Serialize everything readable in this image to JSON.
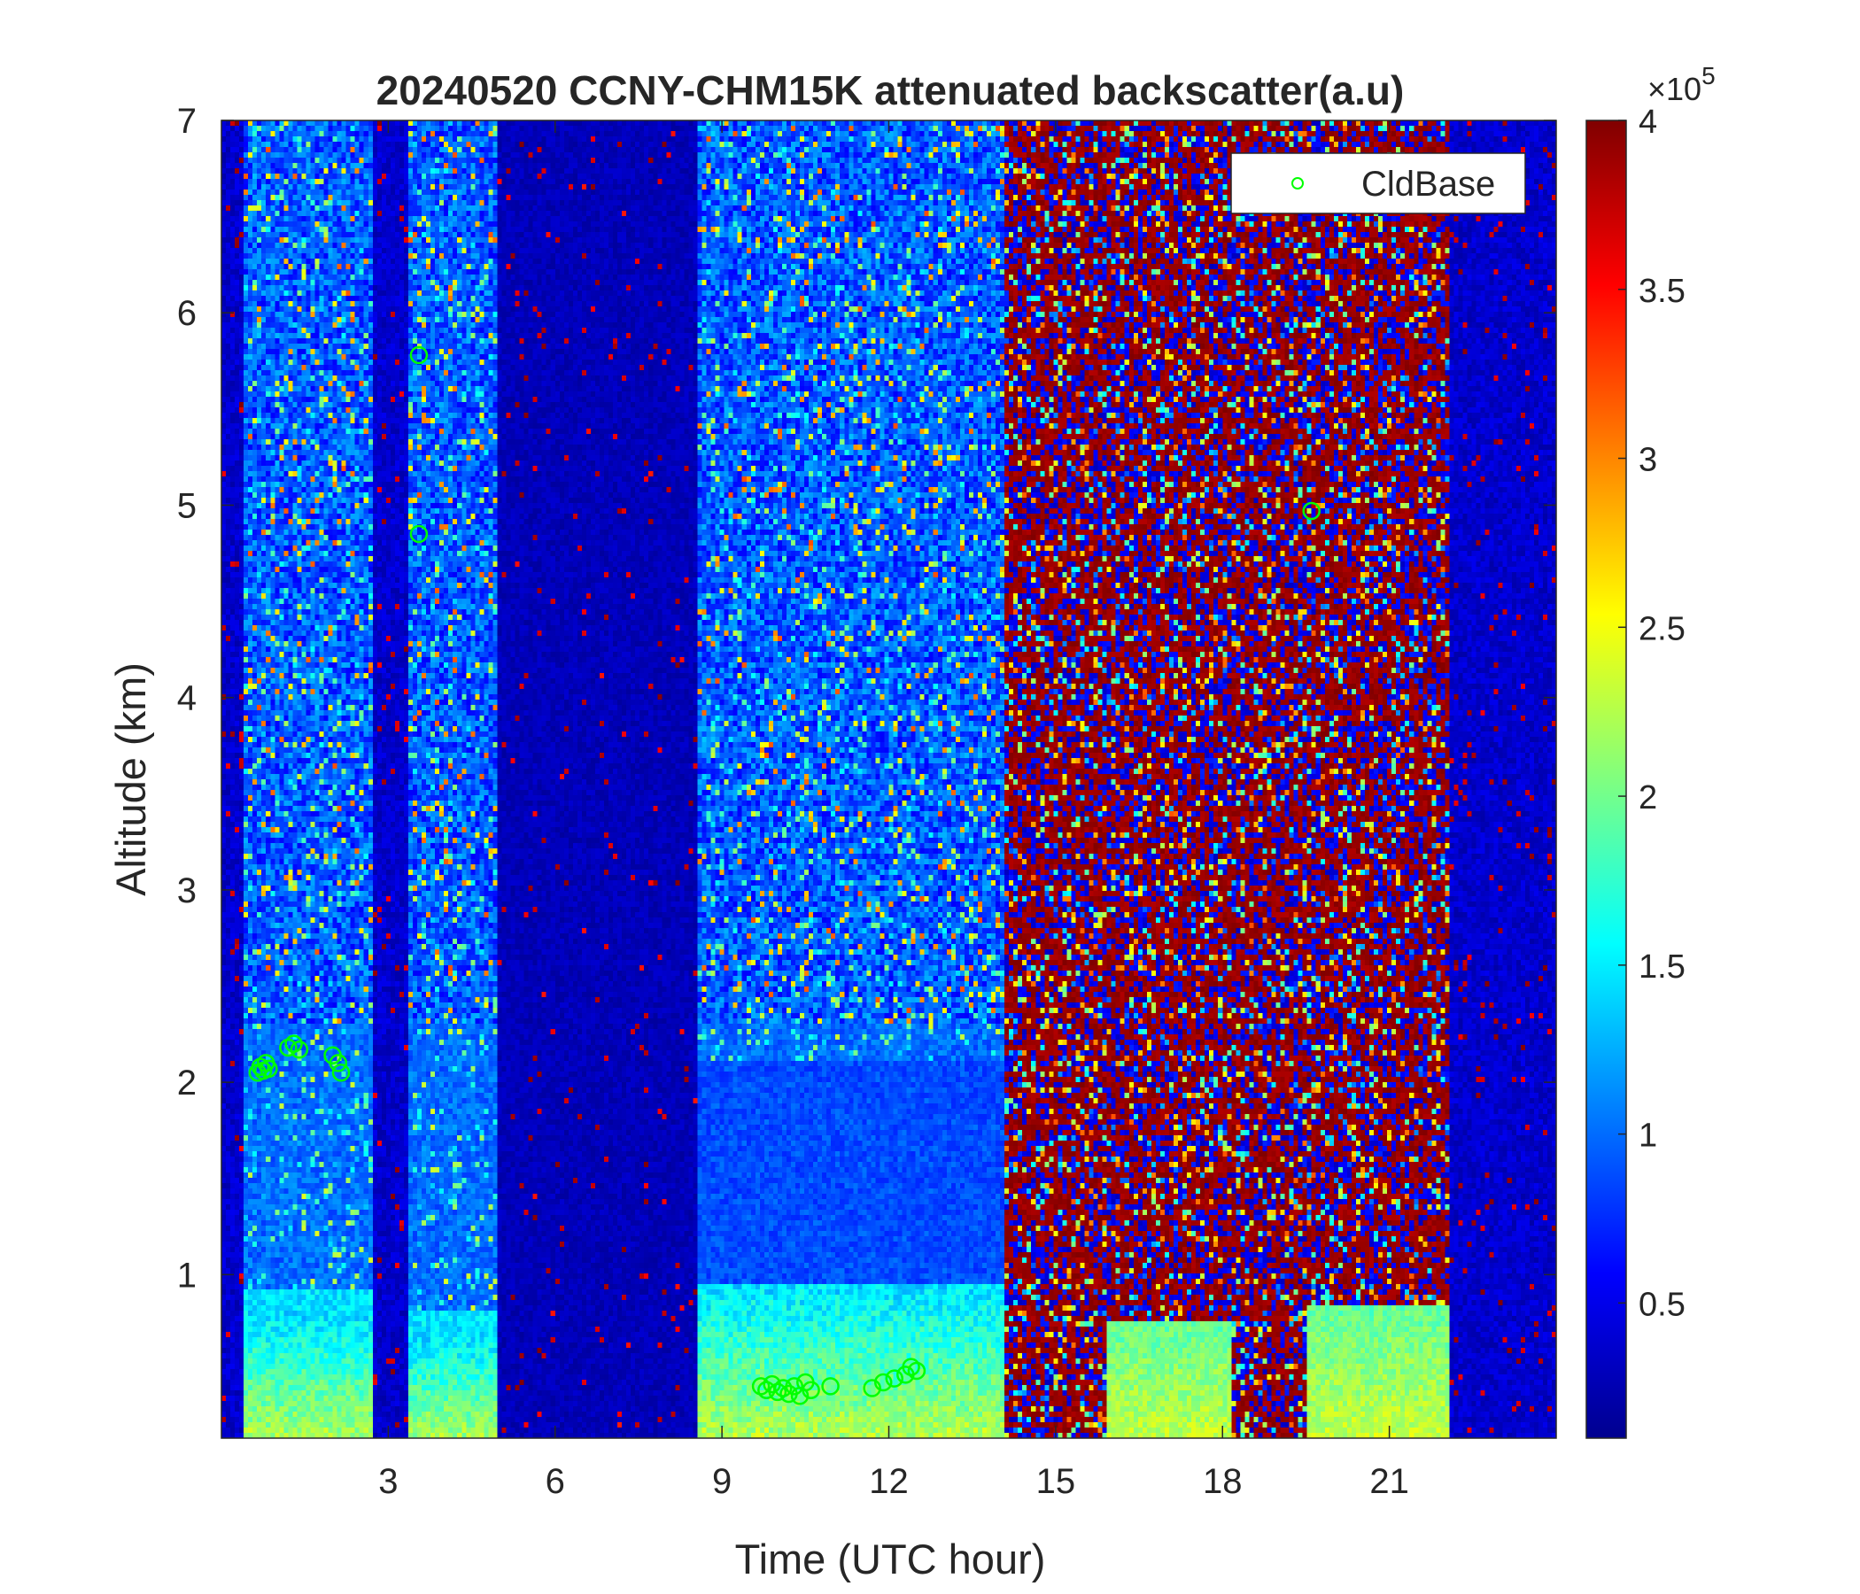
{
  "chart_data": {
    "type": "heatmap",
    "title": "20240520 CCNY-CHM15K attenuated backscatter(a.u)",
    "xlabel": "Time (UTC hour)",
    "ylabel": "Altitude (km)",
    "xlim": [
      0,
      24
    ],
    "ylim": [
      0.15,
      7
    ],
    "x_ticks": [
      3,
      6,
      9,
      12,
      15,
      18,
      21
    ],
    "y_ticks": [
      1,
      2,
      3,
      4,
      5,
      6,
      7
    ],
    "grid": false,
    "colormap": "jet",
    "colorbar": {
      "clim": [
        10000,
        400000
      ],
      "exponent_label": "×10",
      "exponent_power": "5",
      "ticks": [
        0.5,
        1,
        1.5,
        2,
        2.5,
        3,
        3.5,
        4
      ]
    },
    "legend": {
      "position": "top-right",
      "entries": [
        {
          "name": "CldBase",
          "marker": "circle",
          "color": "#00ff00"
        }
      ]
    },
    "data_periods": [
      {
        "start": 0.4,
        "end": 2.7,
        "sky": "moderate noise",
        "boundary_layer_top_km": 0.8
      },
      {
        "start": 3.4,
        "end": 5.0,
        "sky": "moderate noise",
        "boundary_layer_top_km": 0.7
      },
      {
        "start": 5.0,
        "end": 8.6,
        "sky": "low signal"
      },
      {
        "start": 8.6,
        "end": 14.1,
        "sky": "moderate noise",
        "boundary_layer_top_km": 0.95
      },
      {
        "start": 14.1,
        "end": 15.9,
        "sky": "high background"
      },
      {
        "start": 15.9,
        "end": 18.2,
        "sky": "high background",
        "boundary_layer_top_km": 0.75
      },
      {
        "start": 18.2,
        "end": 19.5,
        "sky": "high background"
      },
      {
        "start": 19.5,
        "end": 22.1,
        "sky": "high background",
        "boundary_layer_top_km": 0.85
      }
    ],
    "cloud_base": {
      "name": "CldBase",
      "points": [
        [
          0.65,
          2.05
        ],
        [
          0.7,
          2.08
        ],
        [
          0.75,
          2.06
        ],
        [
          0.8,
          2.1
        ],
        [
          0.85,
          2.07
        ],
        [
          1.2,
          2.18
        ],
        [
          1.3,
          2.2
        ],
        [
          1.4,
          2.17
        ],
        [
          2.0,
          2.14
        ],
        [
          2.1,
          2.1
        ],
        [
          2.15,
          2.05
        ],
        [
          3.55,
          5.78
        ],
        [
          3.55,
          4.85
        ],
        [
          9.7,
          0.42
        ],
        [
          9.8,
          0.4
        ],
        [
          9.9,
          0.43
        ],
        [
          10.0,
          0.39
        ],
        [
          10.1,
          0.41
        ],
        [
          10.2,
          0.38
        ],
        [
          10.3,
          0.42
        ],
        [
          10.4,
          0.37
        ],
        [
          10.5,
          0.44
        ],
        [
          10.6,
          0.4
        ],
        [
          10.95,
          0.42
        ],
        [
          11.7,
          0.41
        ],
        [
          11.9,
          0.44
        ],
        [
          12.1,
          0.46
        ],
        [
          12.3,
          0.48
        ],
        [
          12.4,
          0.52
        ],
        [
          12.5,
          0.5
        ],
        [
          19.6,
          4.97
        ]
      ]
    }
  }
}
